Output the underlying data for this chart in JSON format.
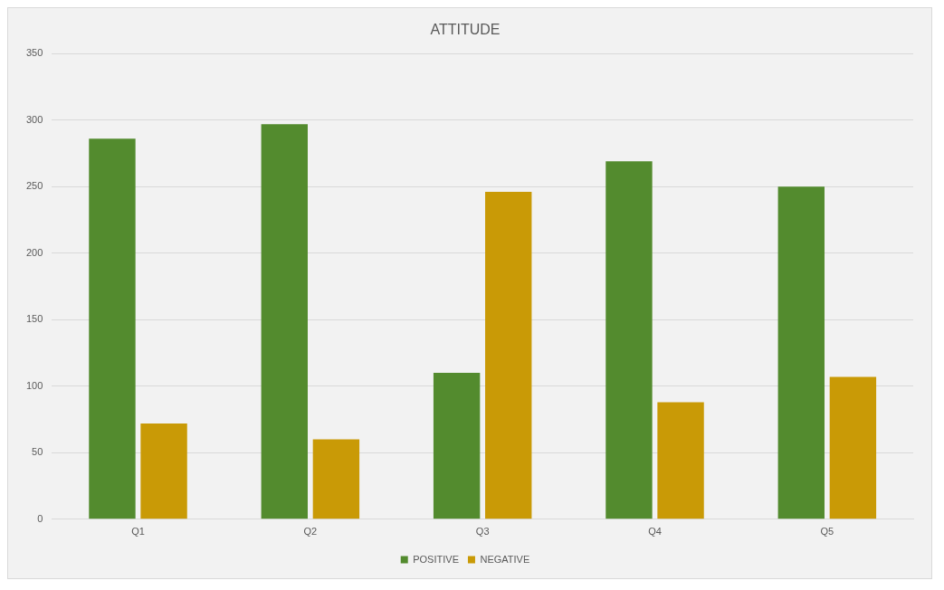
{
  "chart_data": {
    "type": "bar",
    "title": "ATTITUDE",
    "categories": [
      "Q1",
      "Q2",
      "Q3",
      "Q4",
      "Q5"
    ],
    "series": [
      {
        "name": "POSITIVE",
        "color": "#538b2e",
        "values": [
          286,
          297,
          110,
          269,
          250
        ]
      },
      {
        "name": "NEGATIVE",
        "color": "#c99a06",
        "values": [
          72,
          60,
          246,
          88,
          107
        ]
      }
    ],
    "ylim": [
      0,
      350
    ],
    "yticks": [
      0,
      50,
      100,
      150,
      200,
      250,
      300,
      350
    ],
    "grid": "y",
    "legend": "bottom"
  }
}
